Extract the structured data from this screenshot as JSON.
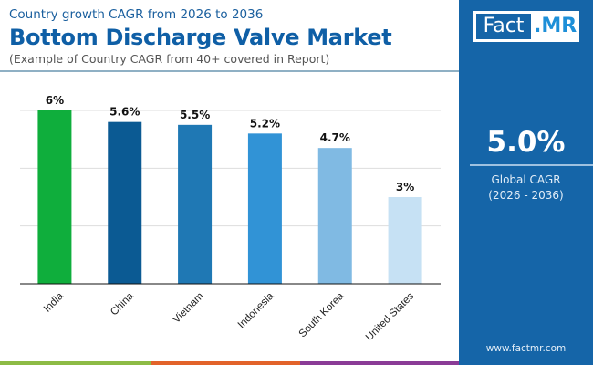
{
  "header": {
    "subtitle": "Country growth CAGR from 2026 to 2036",
    "title": "Bottom Discharge Valve Market",
    "note": "(Example of Country CAGR from 40+ covered in Report)"
  },
  "sidebar": {
    "logo_left": "Fact",
    "logo_right": ".MR",
    "global_value": "5.0%",
    "global_label": "Global CAGR",
    "global_period": "(2026 - 2036)",
    "url": "www.factmr.com"
  },
  "colors": {
    "panel": "#1565a8",
    "stripes": [
      "#8dbb45",
      "#e2632a",
      "#8a3b96"
    ]
  },
  "chart_data": {
    "type": "bar",
    "categories": [
      "India",
      "China",
      "Vietnam",
      "Indonesia",
      "South Korea",
      "United States"
    ],
    "values": [
      6,
      5.6,
      5.5,
      5.2,
      4.7,
      3
    ],
    "labels": [
      "6%",
      "5.6%",
      "5.5%",
      "5.2%",
      "4.7%",
      "3%"
    ],
    "colors": [
      "#0fae3c",
      "#0b5a93",
      "#1f78b4",
      "#3193d6",
      "#80bae3",
      "#c6e1f4"
    ],
    "ylim": [
      0,
      6
    ],
    "grid": true,
    "xlabel": "",
    "ylabel": ""
  }
}
